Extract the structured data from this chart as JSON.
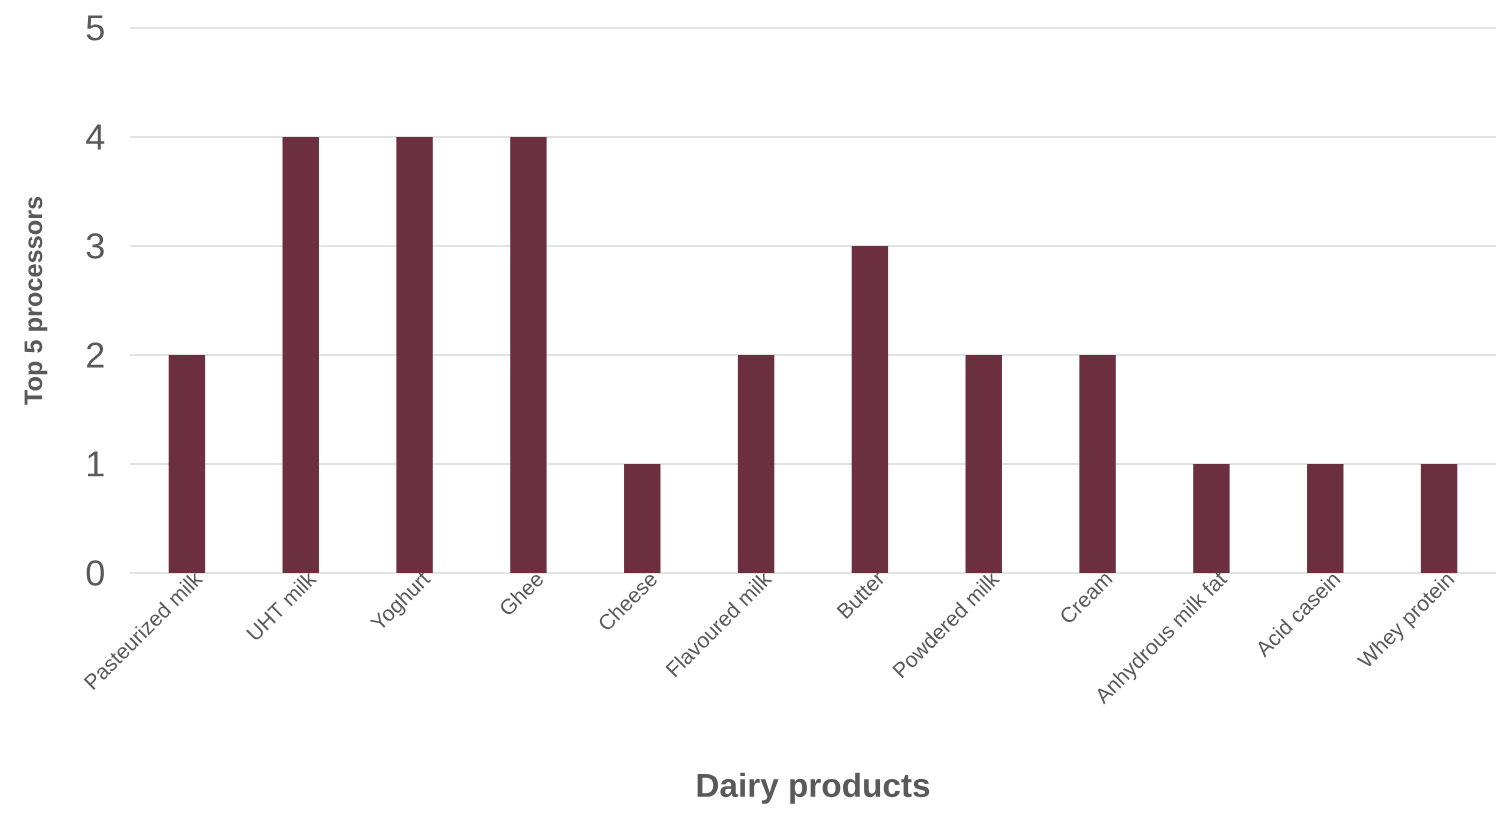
{
  "chart_data": {
    "type": "bar",
    "xlabel": "Dairy products",
    "ylabel": "Top 5 processors",
    "categories": [
      "Pasteurized milk",
      "UHT milk",
      "Yoghurt",
      "Ghee",
      "Cheese",
      "Flavoured milk",
      "Butter",
      "Powdered milk",
      "Cream",
      "Anhydrous milk fat",
      "Acid casein",
      "Whey protein"
    ],
    "values": [
      2,
      4,
      4,
      4,
      1,
      2,
      3,
      2,
      2,
      1,
      1,
      1
    ],
    "color": "#6b2f3f",
    "ylim": [
      0,
      5
    ],
    "yticks": [
      0,
      1,
      2,
      3,
      4,
      5
    ],
    "grid": "y"
  }
}
